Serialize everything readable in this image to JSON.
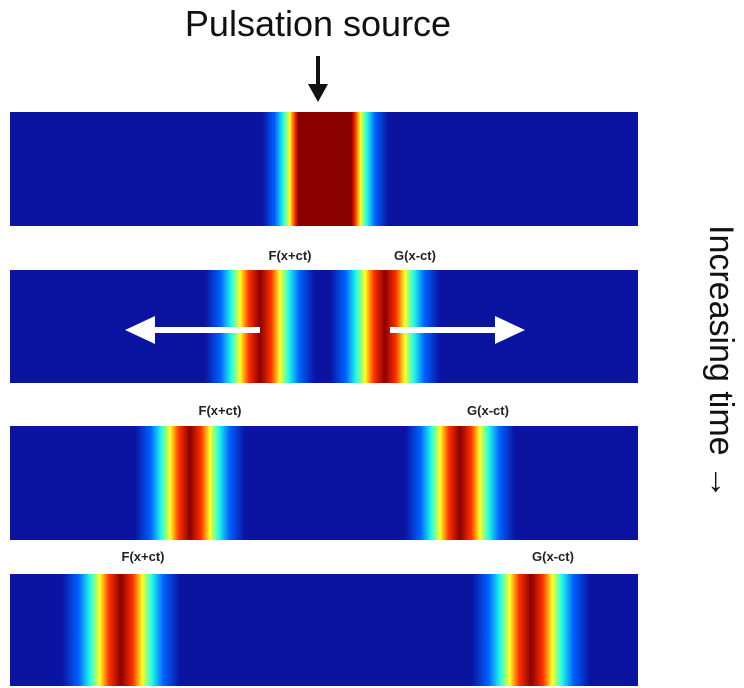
{
  "title": "Pulsation source",
  "side_label": "Increasing time →",
  "frames": [
    {
      "left": "F(x+ct)",
      "right": "G(x-ct)"
    },
    {
      "left": "F(x+ct)",
      "right": "G(x-ct)"
    },
    {
      "left": "F(x+ct)",
      "right": "G(x-ct)"
    }
  ]
}
